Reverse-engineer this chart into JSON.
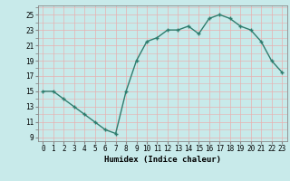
{
  "x": [
    0,
    1,
    2,
    3,
    4,
    5,
    6,
    7,
    8,
    9,
    10,
    11,
    12,
    13,
    14,
    15,
    16,
    17,
    18,
    19,
    20,
    21,
    22,
    23
  ],
  "y": [
    15,
    15,
    14,
    13,
    12,
    11,
    10,
    9.5,
    15,
    19,
    21.5,
    22,
    23,
    23,
    23.5,
    22.5,
    24.5,
    25,
    24.5,
    23.5,
    23,
    21.5,
    19,
    17.5
  ],
  "line_color": "#2e7d6e",
  "marker": "+",
  "bg_color": "#c8eaea",
  "grid_color": "#e8b0b0",
  "xlabel": "Humidex (Indice chaleur)",
  "yticks": [
    9,
    11,
    13,
    15,
    17,
    19,
    21,
    23,
    25
  ],
  "xtick_labels": [
    "0",
    "1",
    "2",
    "3",
    "4",
    "5",
    "6",
    "7",
    "8",
    "9",
    "10",
    "11",
    "12",
    "13",
    "14",
    "15",
    "16",
    "17",
    "18",
    "19",
    "20",
    "21",
    "22",
    "23"
  ],
  "xlim": [
    -0.5,
    23.5
  ],
  "ylim": [
    8.5,
    26.2
  ],
  "axis_fontsize": 6.5,
  "tick_fontsize": 5.5,
  "linewidth": 1.0,
  "markersize": 3.5,
  "markeredgewidth": 1.0
}
